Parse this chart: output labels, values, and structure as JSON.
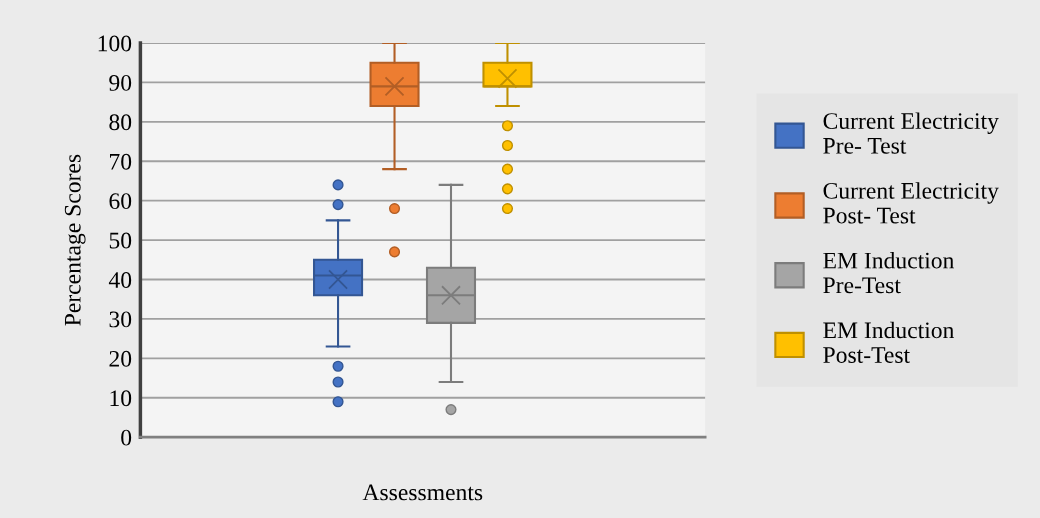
{
  "chart_data": {
    "type": "box",
    "xlabel": "Assessments",
    "ylabel": "Percentage Scores",
    "categories": [
      null
    ],
    "ylim": [
      0,
      100
    ],
    "yticks": [
      0,
      10,
      20,
      30,
      40,
      50,
      60,
      70,
      80,
      90,
      100
    ],
    "grid": "y",
    "legend": "right",
    "series": [
      {
        "name": "Current Electricity Pre- Test",
        "color": "#4472c4",
        "boxes": [
          {
            "low": 23,
            "q1": 36,
            "median": 41,
            "q3": 45,
            "high": 55,
            "mean": 40,
            "outliers": [
              64,
              59,
              18,
              14,
              9
            ]
          }
        ]
      },
      {
        "name": "Current Electricity Post- Test",
        "color": "#ed7d31",
        "boxes": [
          {
            "low": 68,
            "q1": 84,
            "median": 89,
            "q3": 95,
            "high": 100,
            "mean": 89,
            "outliers": [
              58,
              47
            ]
          }
        ]
      },
      {
        "name": "EM Induction Pre-Test",
        "color": "#a5a5a5",
        "boxes": [
          {
            "low": 14,
            "q1": 29,
            "median": 36,
            "q3": 43,
            "high": 64,
            "mean": 36,
            "outliers": [
              7
            ]
          }
        ]
      },
      {
        "name": "EM Induction Post-Test",
        "color": "#ffc000",
        "boxes": [
          {
            "low": 84,
            "q1": 89,
            "median": 89,
            "q3": 95,
            "high": 100,
            "mean": 91,
            "outliers": [
              79,
              74,
              68,
              63,
              58
            ]
          }
        ]
      }
    ]
  }
}
